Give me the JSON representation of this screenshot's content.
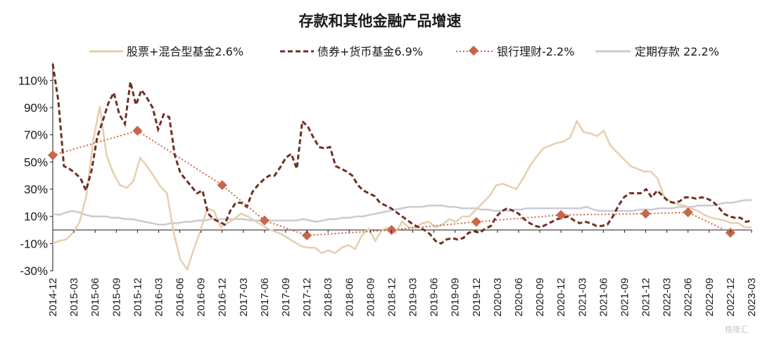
{
  "watermark": "格隆汇",
  "chart_data": {
    "type": "line",
    "title": "存款和其他金融产品增速",
    "xlabel": "",
    "ylabel": "",
    "ylim": [
      -30,
      120
    ],
    "yticks": [
      -30,
      -10,
      10,
      30,
      50,
      70,
      90,
      110
    ],
    "ytick_labels": [
      "-30%",
      "-10%",
      "10%",
      "30%",
      "50%",
      "70%",
      "90%",
      "110%"
    ],
    "x_start": "2014-12",
    "x_labels": [
      "2014-12",
      "2015-03",
      "2015-06",
      "2015-09",
      "2015-12",
      "2016-03",
      "2016-06",
      "2016-09",
      "2016-12",
      "2017-03",
      "2017-06",
      "2017-09",
      "2017-12",
      "2018-03",
      "2018-06",
      "2018-09",
      "2018-12",
      "2019-03",
      "2019-06",
      "2019-09",
      "2019-12",
      "2020-03",
      "2020-06",
      "2020-09",
      "2020-12",
      "2021-03",
      "2021-06",
      "2021-09",
      "2021-12",
      "2022-03",
      "2022-06",
      "2022-09",
      "2022-12",
      "2023-03"
    ],
    "grid": false,
    "legend_position": "top",
    "series": [
      {
        "name": "股票+混合型基金2.6%",
        "style": "solid",
        "color": "#e6cfac",
        "values": [
          -10,
          -8,
          -7,
          -2,
          6,
          25,
          65,
          91,
          55,
          42,
          33,
          31,
          36,
          53,
          47,
          40,
          32,
          27,
          -2,
          -22,
          -29,
          -14,
          0,
          16,
          14,
          2,
          5,
          8,
          12,
          10,
          7,
          4,
          1,
          -1,
          -3,
          -6,
          -9,
          -12,
          -13,
          -13,
          -17,
          -15,
          -17,
          -13,
          -11,
          -14,
          -4,
          1,
          -8,
          0,
          2,
          -2,
          6,
          2,
          2,
          5,
          6,
          2,
          4,
          8,
          6,
          10,
          10,
          15,
          20,
          25,
          33,
          34,
          32,
          30,
          38,
          47,
          54,
          60,
          62,
          64,
          65,
          68,
          80,
          72,
          71,
          69,
          73,
          62,
          57,
          52,
          47,
          45,
          43,
          43,
          38,
          24,
          21,
          19,
          18,
          16,
          14,
          11,
          9,
          8,
          7,
          5,
          5,
          2,
          2
        ]
      },
      {
        "name": "债券+货币基金6.9%",
        "style": "dashed",
        "color": "#6e2f22",
        "values": [
          122,
          95,
          47,
          45,
          42,
          38,
          29,
          44,
          68,
          80,
          93,
          101,
          85,
          78,
          109,
          92,
          103,
          97,
          90,
          74,
          85,
          83,
          55,
          42,
          37,
          32,
          27,
          29,
          12,
          8,
          6,
          4,
          14,
          20,
          20,
          17,
          28,
          33,
          37,
          40,
          40,
          46,
          53,
          56,
          45,
          80,
          76,
          68,
          61,
          60,
          61,
          47,
          45,
          43,
          40,
          33,
          29,
          27,
          25,
          20,
          18,
          16,
          13,
          10,
          7,
          4,
          2,
          0,
          -3,
          -8,
          -10,
          -7,
          -6,
          -7,
          -6,
          -2,
          -1,
          -2,
          1,
          3,
          10,
          14,
          16,
          14,
          12,
          8,
          5,
          3,
          2,
          4,
          6,
          8,
          9,
          10,
          7,
          5,
          6,
          5,
          3,
          3,
          4,
          10,
          18,
          24,
          27,
          27,
          27,
          30,
          24,
          29,
          25,
          21,
          20,
          21,
          24,
          24,
          23,
          24,
          23,
          21,
          17,
          12,
          10,
          9,
          9,
          6,
          7
        ]
      },
      {
        "name": "银行理财-2.2%",
        "style": "dotted",
        "color": "#c8664a",
        "points": [
          {
            "x": "2014-12",
            "y": 55
          },
          {
            "x": "2015-12",
            "y": 73
          },
          {
            "x": "2016-12",
            "y": 33
          },
          {
            "x": "2017-06",
            "y": 7
          },
          {
            "x": "2017-12",
            "y": -4
          },
          {
            "x": "2018-12",
            "y": 0
          },
          {
            "x": "2019-12",
            "y": 6
          },
          {
            "x": "2020-12",
            "y": 11
          },
          {
            "x": "2021-12",
            "y": 12
          },
          {
            "x": "2022-06",
            "y": 13
          },
          {
            "x": "2022-12",
            "y": -2
          }
        ]
      },
      {
        "name": "定期存款 22.2%",
        "style": "solid",
        "color": "#c9cad6",
        "values": [
          12,
          11,
          13,
          14,
          13,
          11,
          10,
          10,
          10,
          9,
          9,
          8,
          8,
          7,
          6,
          5,
          4,
          4,
          5,
          5,
          6,
          6,
          7,
          7,
          8,
          8,
          8,
          8,
          8,
          8,
          7,
          7,
          7,
          7,
          7,
          7,
          7,
          7,
          8,
          7,
          6,
          7,
          8,
          8,
          9,
          9,
          10,
          10,
          11,
          12,
          13,
          14,
          15,
          16,
          17,
          17,
          17,
          18,
          18,
          18,
          17,
          17,
          16,
          16,
          16,
          15,
          15,
          14,
          14,
          14,
          15,
          15,
          16,
          16,
          16,
          16,
          16,
          16,
          16,
          16,
          16,
          17,
          15,
          14,
          14,
          14,
          14,
          14,
          14,
          15,
          15,
          15,
          16,
          16,
          16,
          17,
          17,
          17,
          18,
          18,
          18,
          19,
          20,
          20,
          21,
          22,
          22
        ]
      }
    ]
  }
}
